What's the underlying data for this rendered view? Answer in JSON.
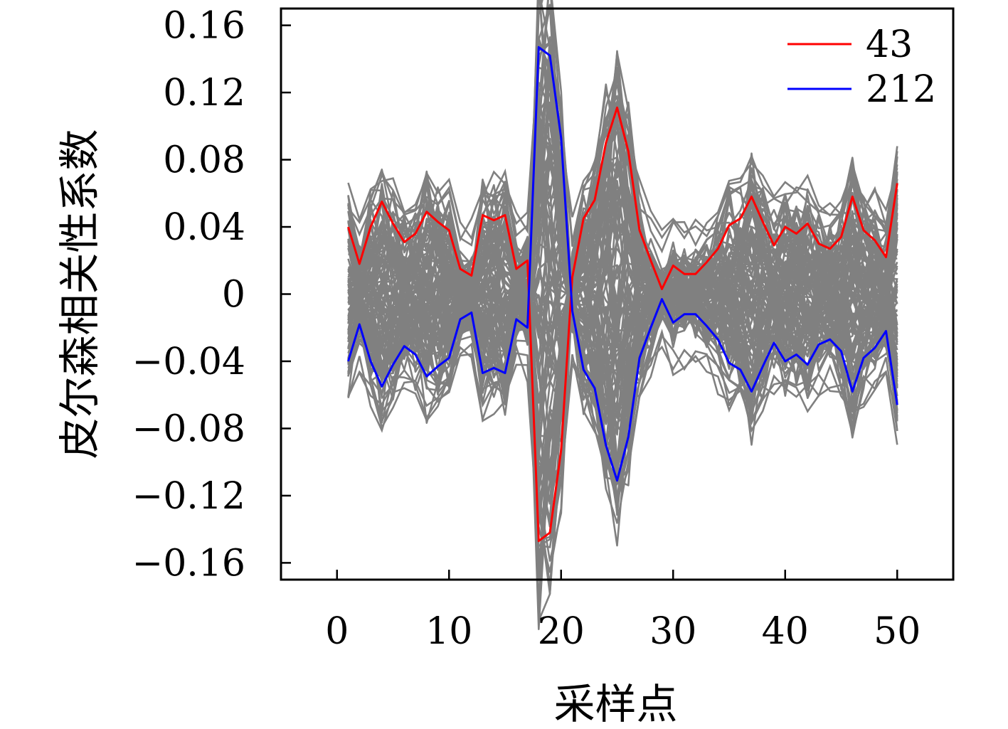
{
  "chart_data": {
    "type": "line",
    "xlabel": "采样点",
    "ylabel": "皮尔森相关性系数",
    "xlim": [
      -5,
      55
    ],
    "ylim": [
      -0.17,
      0.17
    ],
    "xticks": [
      0,
      10,
      20,
      30,
      40,
      50
    ],
    "xtick_labels": [
      "0",
      "10",
      "20",
      "30",
      "40",
      "50"
    ],
    "yticks": [
      0.16,
      0.12,
      0.08,
      0.04,
      0,
      -0.04,
      -0.08,
      -0.12,
      -0.16
    ],
    "ytick_labels": [
      "0.16",
      "0.12",
      "0.08",
      "0.04",
      "0",
      "−0.04",
      "−0.08",
      "−0.12",
      "−0.16"
    ],
    "grid": false,
    "legend_position": "top-right",
    "background_color": "#808080",
    "series": [
      {
        "name": "43",
        "color": "#ff0000",
        "x": [
          1,
          2,
          3,
          4,
          5,
          6,
          7,
          8,
          9,
          10,
          11,
          12,
          13,
          14,
          15,
          16,
          17,
          18,
          19,
          20,
          21,
          22,
          23,
          24,
          25,
          26,
          27,
          28,
          29,
          30,
          31,
          32,
          33,
          34,
          35,
          36,
          37,
          38,
          39,
          40,
          41,
          42,
          43,
          44,
          45,
          46,
          47,
          48,
          49,
          50
        ],
        "y": [
          0.04,
          0.018,
          0.04,
          0.055,
          0.042,
          0.031,
          0.036,
          0.049,
          0.043,
          0.038,
          0.015,
          0.011,
          0.047,
          0.044,
          0.047,
          0.015,
          0.02,
          -0.147,
          -0.142,
          -0.093,
          0.01,
          0.045,
          0.056,
          0.09,
          0.111,
          0.085,
          0.038,
          0.02,
          0.003,
          0.017,
          0.012,
          0.012,
          0.019,
          0.027,
          0.041,
          0.045,
          0.058,
          0.043,
          0.029,
          0.04,
          0.036,
          0.042,
          0.03,
          0.027,
          0.034,
          0.058,
          0.038,
          0.032,
          0.022,
          0.066
        ]
      },
      {
        "name": "212",
        "color": "#0000ff",
        "x": [
          1,
          2,
          3,
          4,
          5,
          6,
          7,
          8,
          9,
          10,
          11,
          12,
          13,
          14,
          15,
          16,
          17,
          18,
          19,
          20,
          21,
          22,
          23,
          24,
          25,
          26,
          27,
          28,
          29,
          30,
          31,
          32,
          33,
          34,
          35,
          36,
          37,
          38,
          39,
          40,
          41,
          42,
          43,
          44,
          45,
          46,
          47,
          48,
          49,
          50
        ],
        "y": [
          -0.04,
          -0.018,
          -0.04,
          -0.055,
          -0.042,
          -0.031,
          -0.036,
          -0.049,
          -0.043,
          -0.038,
          -0.015,
          -0.011,
          -0.047,
          -0.044,
          -0.047,
          -0.015,
          -0.02,
          0.147,
          0.142,
          0.093,
          -0.01,
          -0.045,
          -0.056,
          -0.09,
          -0.111,
          -0.085,
          -0.038,
          -0.02,
          -0.003,
          -0.017,
          -0.012,
          -0.012,
          -0.019,
          -0.027,
          -0.041,
          -0.045,
          -0.058,
          -0.043,
          -0.029,
          -0.04,
          -0.036,
          -0.042,
          -0.03,
          -0.027,
          -0.034,
          -0.058,
          -0.038,
          -0.032,
          -0.022,
          -0.066
        ]
      }
    ]
  }
}
